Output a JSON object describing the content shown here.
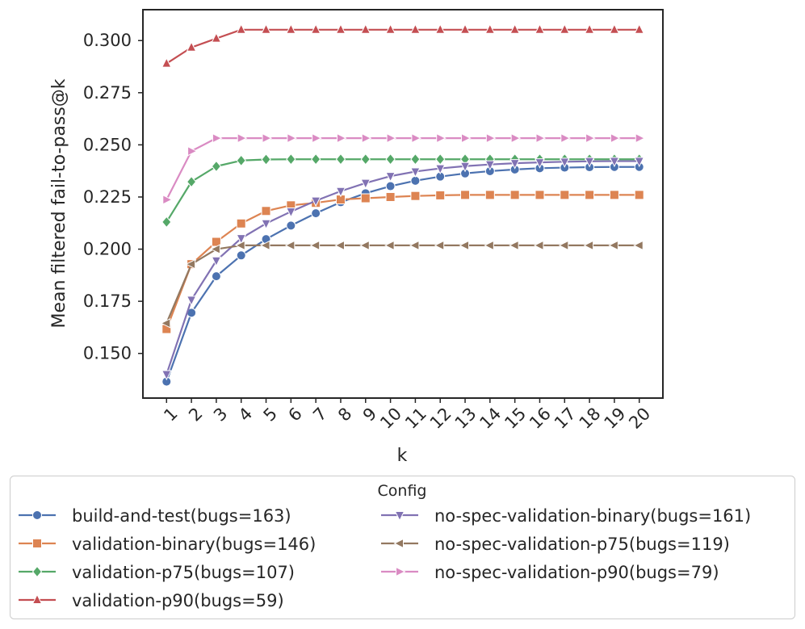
{
  "chart_data": {
    "type": "line",
    "xlabel": "k",
    "ylabel": "Mean filtered fail-to-pass@k",
    "x": [
      1,
      2,
      3,
      4,
      5,
      6,
      7,
      8,
      9,
      10,
      11,
      12,
      13,
      14,
      15,
      16,
      17,
      18,
      19,
      20
    ],
    "xlim": [
      0.05,
      20.95
    ],
    "ylim": [
      0.1286,
      0.3148
    ],
    "yticks": [
      0.15,
      0.175,
      0.2,
      0.225,
      0.25,
      0.275,
      0.3
    ],
    "ytick_labels": [
      "0.150",
      "0.175",
      "0.200",
      "0.225",
      "0.250",
      "0.275",
      "0.300"
    ],
    "xtick_labels": [
      "1",
      "2",
      "3",
      "4",
      "5",
      "6",
      "7",
      "8",
      "9",
      "10",
      "11",
      "12",
      "13",
      "14",
      "15",
      "16",
      "17",
      "18",
      "19",
      "20"
    ],
    "grid": false,
    "legend": {
      "title": "Config",
      "placement": "below",
      "columns": 2
    },
    "series": [
      {
        "name": "build-and-test(bugs=163)",
        "color": "#4c72b0",
        "marker": "circle",
        "values": [
          0.1365,
          0.1695,
          0.187,
          0.197,
          0.2048,
          0.2113,
          0.2172,
          0.2225,
          0.2268,
          0.2302,
          0.2328,
          0.2348,
          0.2363,
          0.2374,
          0.2382,
          0.2388,
          0.2391,
          0.2393,
          0.2394,
          0.2394
        ]
      },
      {
        "name": "validation-binary(bugs=146)",
        "color": "#dd8452",
        "marker": "square",
        "values": [
          0.1617,
          0.1928,
          0.2035,
          0.2123,
          0.2183,
          0.221,
          0.2222,
          0.2238,
          0.2244,
          0.225,
          0.2255,
          0.2258,
          0.226,
          0.226,
          0.226,
          0.226,
          0.226,
          0.226,
          0.226,
          0.226
        ]
      },
      {
        "name": "validation-p75(bugs=107)",
        "color": "#55a868",
        "marker": "diamond",
        "values": [
          0.213,
          0.2323,
          0.2397,
          0.2425,
          0.243,
          0.2431,
          0.2431,
          0.2431,
          0.2431,
          0.2431,
          0.2431,
          0.2431,
          0.2431,
          0.2431,
          0.2431,
          0.2431,
          0.2431,
          0.2431,
          0.2431,
          0.2431
        ]
      },
      {
        "name": "validation-p90(bugs=59)",
        "color": "#c44e52",
        "marker": "triangle-up",
        "values": [
          0.289,
          0.2967,
          0.301,
          0.3052,
          0.3052,
          0.3052,
          0.3052,
          0.3052,
          0.3052,
          0.3052,
          0.3052,
          0.3052,
          0.3052,
          0.3052,
          0.3052,
          0.3052,
          0.3052,
          0.3052,
          0.3052,
          0.3052
        ]
      },
      {
        "name": "no-spec-validation-binary(bugs=161)",
        "color": "#8172b3",
        "marker": "triangle-down",
        "values": [
          0.14,
          0.1757,
          0.1945,
          0.2052,
          0.2123,
          0.218,
          0.2232,
          0.2278,
          0.2317,
          0.235,
          0.2372,
          0.2387,
          0.2398,
          0.2406,
          0.2412,
          0.2416,
          0.2419,
          0.2421,
          0.2422,
          0.2422
        ]
      },
      {
        "name": "no-spec-validation-p75(bugs=119)",
        "color": "#937860",
        "marker": "triangle-left",
        "values": [
          0.1645,
          0.1928,
          0.2,
          0.2018,
          0.2018,
          0.2018,
          0.2018,
          0.2018,
          0.2018,
          0.2018,
          0.2018,
          0.2018,
          0.2018,
          0.2018,
          0.2018,
          0.2018,
          0.2018,
          0.2018,
          0.2018,
          0.2018
        ]
      },
      {
        "name": "no-spec-validation-p90(bugs=79)",
        "color": "#da8bc3",
        "marker": "triangle-right",
        "values": [
          0.2237,
          0.247,
          0.2532,
          0.2532,
          0.2532,
          0.2532,
          0.2532,
          0.2532,
          0.2532,
          0.2532,
          0.2532,
          0.2532,
          0.2532,
          0.2532,
          0.2532,
          0.2532,
          0.2532,
          0.2532,
          0.2532,
          0.2532
        ]
      }
    ]
  }
}
